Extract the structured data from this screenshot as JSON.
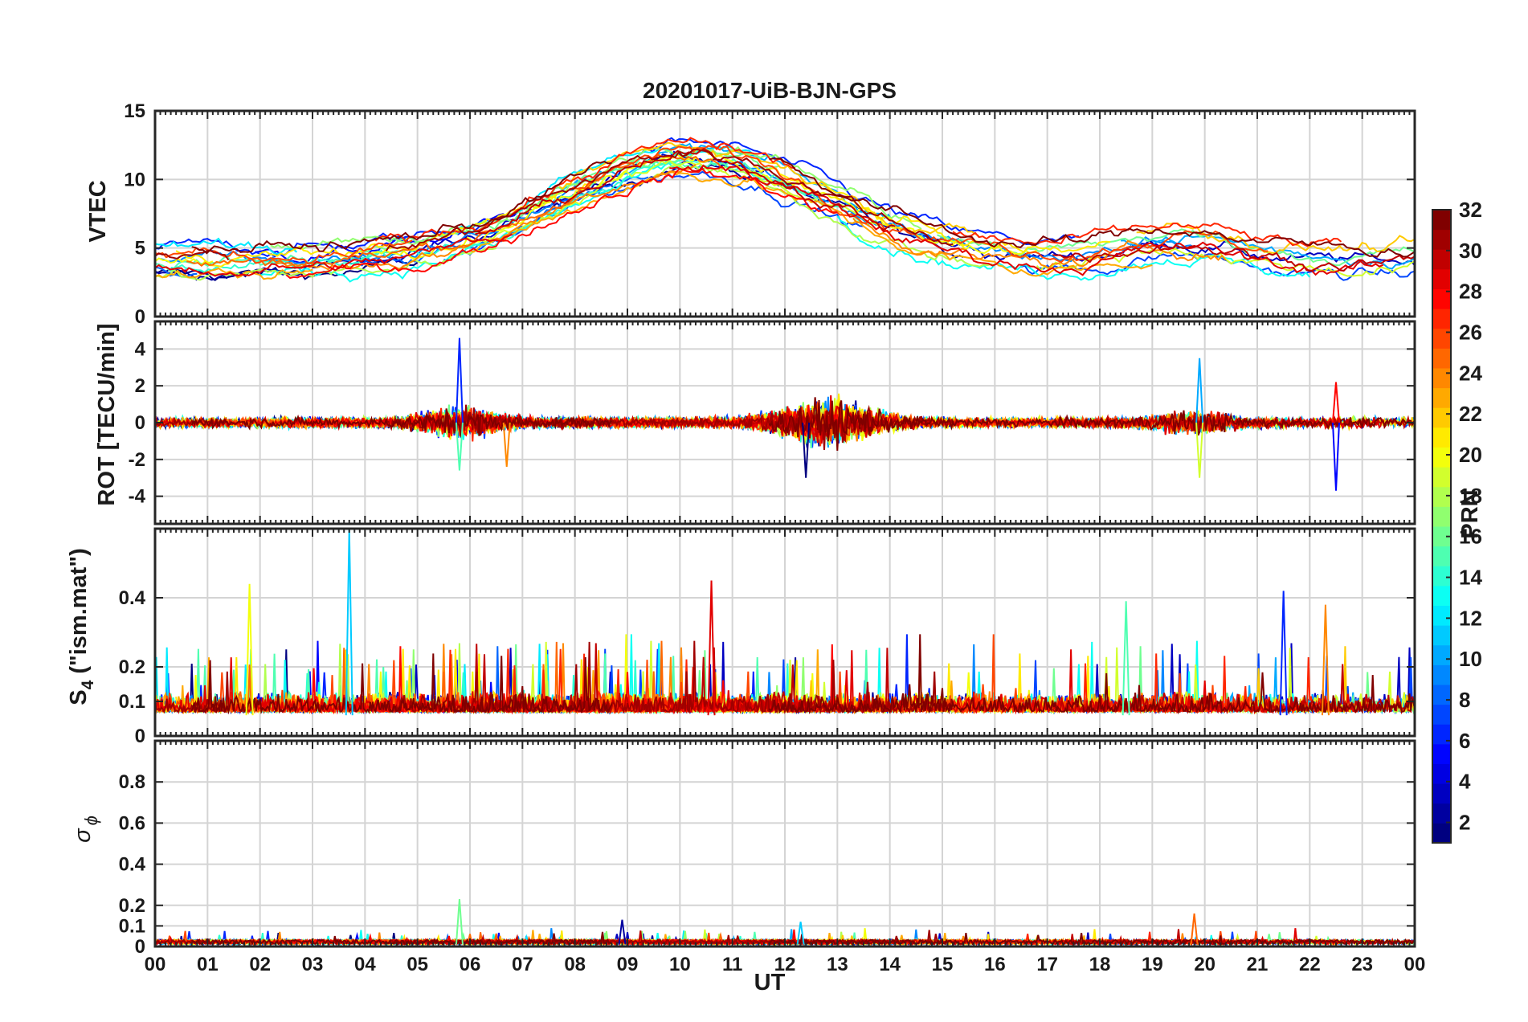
{
  "chart_data": {
    "type": "line",
    "title": "20201017-UiB-BJN-GPS",
    "xlabel": "UT",
    "xlim": [
      0,
      24
    ],
    "x_tick_labels": [
      "00",
      "01",
      "02",
      "03",
      "04",
      "05",
      "06",
      "07",
      "08",
      "09",
      "10",
      "11",
      "12",
      "13",
      "14",
      "15",
      "16",
      "17",
      "18",
      "19",
      "20",
      "21",
      "22",
      "23",
      "00"
    ],
    "colorbar": {
      "label": "PRN",
      "range": [
        1,
        32
      ],
      "colormap": "jet",
      "tick_labels": [
        "2",
        "4",
        "6",
        "8",
        "10",
        "12",
        "14",
        "16",
        "18",
        "20",
        "22",
        "24",
        "26",
        "28",
        "30",
        "32"
      ]
    },
    "panels": [
      {
        "ylabel": "VTEC",
        "ylim": [
          0,
          15
        ],
        "y_tick_labels": [
          "0",
          "5",
          "10",
          "15"
        ],
        "series_summary": {
          "description_values": "diurnal VTEC per PRN",
          "baseline_start": 4,
          "peak_hour": 10.2,
          "peak_value": 12.5,
          "evening_value": 3.5
        }
      },
      {
        "ylabel": "ROT [TECU/min]",
        "ylim": [
          -5.5,
          5.5
        ],
        "y_tick_labels": [
          "-4",
          "-2",
          "0",
          "2",
          "4"
        ],
        "series_summary": {
          "max": 4.6,
          "min": -3.7,
          "spikes": [
            [
              5.8,
              4.6
            ],
            [
              5.8,
              -2.6
            ],
            [
              6.7,
              -2.4
            ],
            [
              12.4,
              -3.0
            ],
            [
              19.9,
              3.5
            ],
            [
              19.9,
              -3.0
            ],
            [
              22.5,
              2.2
            ],
            [
              22.5,
              -3.7
            ]
          ]
        }
      },
      {
        "ylabel_main": "S",
        "ylabel_sub": "4",
        "ylabel_rest": " (\"ism.mat\")",
        "ylim": [
          0,
          0.6
        ],
        "y_tick_labels": [
          "0",
          "0.1",
          "0.2",
          "0.4"
        ],
        "series_summary": {
          "baseline": 0.06,
          "max": 0.6,
          "peaks": [
            [
              3.7,
              0.6
            ],
            [
              1.8,
              0.44
            ],
            [
              10.6,
              0.45
            ],
            [
              21.5,
              0.42
            ],
            [
              18.5,
              0.39
            ],
            [
              22.3,
              0.38
            ]
          ]
        }
      },
      {
        "ylabel_main": "σ",
        "ylabel_sub": "ϕ",
        "ylim": [
          0,
          1
        ],
        "y_tick_labels": [
          "0",
          "0.1",
          "0.2",
          "0.4",
          "0.6",
          "0.8"
        ],
        "series_summary": {
          "baseline": 0.01,
          "max": 0.23,
          "peaks": [
            [
              5.8,
              0.23
            ],
            [
              19.8,
              0.16
            ],
            [
              8.9,
              0.13
            ],
            [
              12.3,
              0.12
            ]
          ]
        }
      }
    ]
  }
}
